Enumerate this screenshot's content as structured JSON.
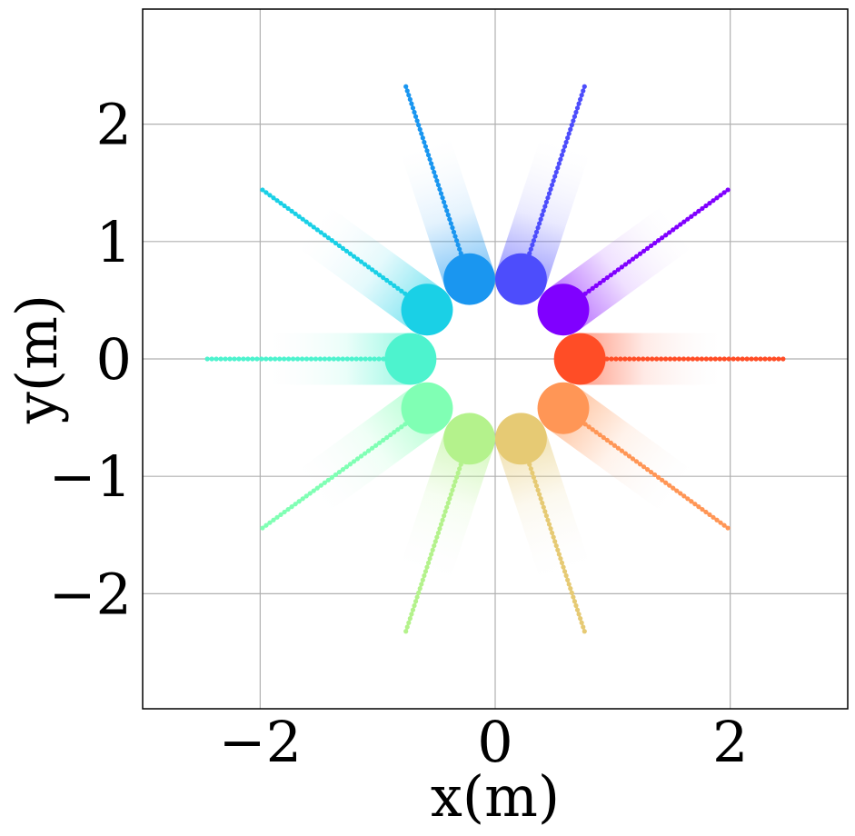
{
  "chart_data": {
    "type": "scatter",
    "xlabel": "x(m)",
    "ylabel": "y(m)",
    "xlim": [
      -3,
      3
    ],
    "ylim": [
      -2.98,
      2.98
    ],
    "grid": true,
    "xticks": [
      {
        "value": -2,
        "label": "−2"
      },
      {
        "value": 0,
        "label": "0"
      },
      {
        "value": 2,
        "label": "2"
      }
    ],
    "yticks": [
      {
        "value": -2,
        "label": "−2"
      },
      {
        "value": -1,
        "label": "−1"
      },
      {
        "value": 0,
        "label": "0"
      },
      {
        "value": 1,
        "label": "1"
      },
      {
        "value": 2,
        "label": "2"
      }
    ],
    "series": [
      {
        "angle_deg": 0,
        "color": "#ff4d26",
        "start": [
          0.72,
          0.0
        ],
        "end": [
          2.45,
          0.0
        ]
      },
      {
        "angle_deg": 36,
        "color": "#8000ff",
        "start": [
          0.58,
          0.42
        ],
        "end": [
          1.98,
          1.44
        ]
      },
      {
        "angle_deg": 72,
        "color": "#4d4dfc",
        "start": [
          0.22,
          0.68
        ],
        "end": [
          0.76,
          2.32
        ]
      },
      {
        "angle_deg": 108,
        "color": "#1a96f0",
        "start": [
          -0.22,
          0.68
        ],
        "end": [
          -0.76,
          2.32
        ]
      },
      {
        "angle_deg": 144,
        "color": "#1ad0e6",
        "start": [
          -0.58,
          0.42
        ],
        "end": [
          -1.98,
          1.44
        ]
      },
      {
        "angle_deg": 180,
        "color": "#4df3ce",
        "start": [
          -0.72,
          0.0
        ],
        "end": [
          -2.45,
          0.0
        ]
      },
      {
        "angle_deg": 216,
        "color": "#80ffb4",
        "start": [
          -0.58,
          -0.42
        ],
        "end": [
          -1.98,
          -1.44
        ]
      },
      {
        "angle_deg": 252,
        "color": "#b4f28c",
        "start": [
          -0.22,
          -0.68
        ],
        "end": [
          -0.76,
          -2.32
        ]
      },
      {
        "angle_deg": 288,
        "color": "#e6ca74",
        "start": [
          0.22,
          -0.68
        ],
        "end": [
          0.76,
          -2.32
        ]
      },
      {
        "angle_deg": 324,
        "color": "#ff9656",
        "start": [
          0.58,
          -0.42
        ],
        "end": [
          1.98,
          -1.44
        ]
      }
    ],
    "points_per_trajectory": 46,
    "agent_radius_m": 0.22
  }
}
